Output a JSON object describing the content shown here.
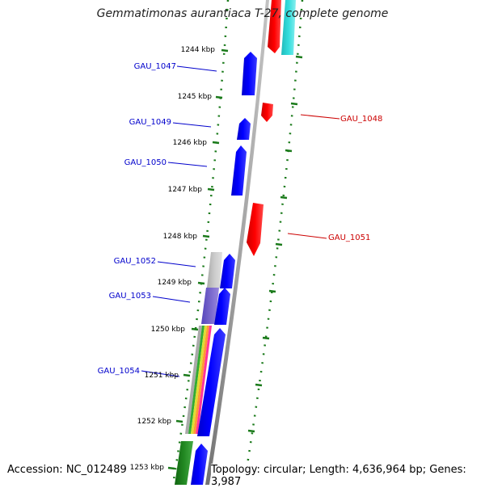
{
  "title": "Gemmatimonas aurantiaca T-27, complete genome",
  "footer": {
    "accession": "Accession: NC_012489",
    "summary": "Topology: circular; Length: 4,636,964 bp; Genes: 3,987"
  },
  "ticks": [
    {
      "label": "1244 kbp"
    },
    {
      "label": "1245 kbp"
    },
    {
      "label": "1246 kbp"
    },
    {
      "label": "1247 kbp"
    },
    {
      "label": "1248 kbp"
    },
    {
      "label": "1249 kbp"
    },
    {
      "label": "1250 kbp"
    },
    {
      "label": "1251 kbp"
    },
    {
      "label": "1252 kbp"
    },
    {
      "label": "1253 kbp"
    }
  ],
  "gene_labels": [
    {
      "name": "GAU_1047",
      "strand": "minus"
    },
    {
      "name": "GAU_1048",
      "strand": "plus"
    },
    {
      "name": "GAU_1049",
      "strand": "minus"
    },
    {
      "name": "GAU_1050",
      "strand": "minus"
    },
    {
      "name": "GAU_1051",
      "strand": "plus"
    },
    {
      "name": "GAU_1052",
      "strand": "minus"
    },
    {
      "name": "GAU_1053",
      "strand": "minus"
    },
    {
      "name": "GAU_1054",
      "strand": "minus"
    }
  ],
  "colors": {
    "minus_strand": "#0000ee",
    "plus_strand": "#ee0000",
    "backbone": "#8c8c8c",
    "tick_mark": "#1a7a1a",
    "cyan_feature": "#33cccc",
    "purple_feature": "#7766cc",
    "grey_feature": "#bbbbbb",
    "dark_green_feature": "#228822"
  }
}
